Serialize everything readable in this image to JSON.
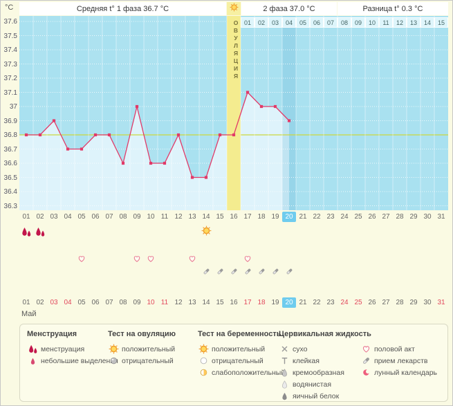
{
  "units_label": "°C",
  "header": {
    "phase1": "Средняя t° 1 фаза 36.7 °C",
    "phase2": "2 фаза 37.0 °C",
    "difference": "Разница t° 0.3 °C"
  },
  "ovulation_band": {
    "label": "ОВУЛЯЦИЯ",
    "day": 16,
    "icon": "sun-icon"
  },
  "month_label": "Май",
  "chart_data": {
    "type": "line",
    "x_days": [
      1,
      2,
      3,
      4,
      5,
      6,
      7,
      8,
      9,
      10,
      11,
      12,
      13,
      14,
      15,
      16,
      17,
      18,
      19,
      20
    ],
    "temperatures": [
      36.8,
      36.8,
      36.9,
      36.7,
      36.7,
      36.8,
      36.8,
      36.6,
      37.0,
      36.6,
      36.6,
      36.8,
      36.5,
      36.5,
      36.8,
      36.8,
      37.1,
      37.0,
      37.0,
      36.9
    ],
    "y_ticks": [
      "37.6",
      "37.5",
      "37.4",
      "37.3",
      "37.2",
      "37.1",
      "37",
      "36.9",
      "36.8",
      "36.7",
      "36.6",
      "36.5",
      "36.4",
      "36.3"
    ],
    "ylim": [
      36.3,
      37.6
    ],
    "coverline": 36.8,
    "days_total": 31,
    "current_day": 20,
    "ovulation_day": 16,
    "dpo_labels": [
      "01",
      "02",
      "03",
      "04",
      "05",
      "06",
      "07",
      "08",
      "09",
      "10",
      "11",
      "12",
      "13",
      "14",
      "15"
    ],
    "phase_averages": {
      "phase1": 36.7,
      "phase2": 37.0,
      "difference": 0.3
    },
    "grid": true,
    "legend_position": "bottom"
  },
  "day_axis": {
    "days": [
      "01",
      "02",
      "03",
      "04",
      "05",
      "06",
      "07",
      "08",
      "09",
      "10",
      "11",
      "12",
      "13",
      "14",
      "15",
      "16",
      "17",
      "18",
      "19",
      "20",
      "21",
      "22",
      "23",
      "24",
      "25",
      "26",
      "27",
      "28",
      "29",
      "30",
      "31"
    ],
    "weekend_days": [
      3,
      4,
      10,
      11,
      17,
      18,
      24,
      25,
      31
    ],
    "current_day": 20
  },
  "markers": {
    "menstruation_days": [
      1,
      2
    ],
    "ovulation_test_positive_days": [
      14
    ],
    "intercourse_days": [
      5,
      9,
      10,
      13,
      17
    ],
    "medication_days": [
      14,
      15,
      16,
      17,
      18,
      19,
      20
    ]
  },
  "legend": {
    "groups": [
      {
        "title": "Менструация",
        "items": [
          {
            "icon": "menstruation-icon",
            "label": "менструация"
          },
          {
            "icon": "spotting-icon",
            "label": "небольшие выделения"
          }
        ]
      },
      {
        "title": "Тест на овуляцию",
        "items": [
          {
            "icon": "test-positive-icon",
            "label": "положительный"
          },
          {
            "icon": "test-negative-icon",
            "label": "отрицательный"
          }
        ]
      },
      {
        "title": "Тест на беременность",
        "items": [
          {
            "icon": "test-positive-icon",
            "label": "положительный"
          },
          {
            "icon": "test-negative-white-icon",
            "label": "отрицательный"
          },
          {
            "icon": "test-weak-positive-icon",
            "label": "слабоположительный"
          }
        ]
      },
      {
        "title": "Цервикальная жидкость",
        "items": [
          {
            "icon": "dry-icon",
            "label": "сухо"
          },
          {
            "icon": "sticky-icon",
            "label": "клейкая"
          },
          {
            "icon": "creamy-icon",
            "label": "кремообразная"
          },
          {
            "icon": "watery-icon",
            "label": "водянистая"
          },
          {
            "icon": "eggwhite-icon",
            "label": "яичный белок"
          }
        ]
      },
      {
        "title": "",
        "items": [
          {
            "icon": "intercourse-icon",
            "label": "половой акт"
          },
          {
            "icon": "medication-icon",
            "label": "прием лекарств"
          },
          {
            "icon": "lunar-icon",
            "label": "лунный календарь"
          }
        ]
      }
    ]
  },
  "colors": {
    "chart_bg": "#a9e1f0",
    "fill_under_curve": "#def3fb",
    "ovulation_band": "#f4ec8f",
    "temperature_line": "#e23a68",
    "coverline": "#ccd83e",
    "current_day_bg": "#6fccee",
    "weekend_text": "#e2475c",
    "positive_test": "#f09b2e"
  }
}
